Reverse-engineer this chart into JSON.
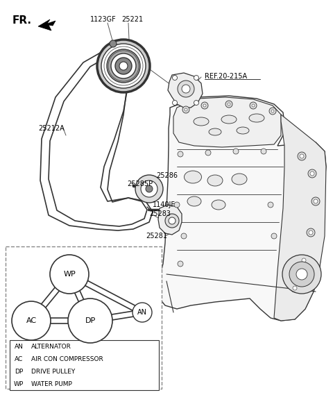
{
  "bg_color": "#ffffff",
  "line_color": "#333333",
  "legend_entries": [
    {
      "code": "AN",
      "desc": "ALTERNATOR"
    },
    {
      "code": "AC",
      "desc": "AIR CON COMPRESSOR"
    },
    {
      "code": "DP",
      "desc": "DRIVE PULLEY"
    },
    {
      "code": "WP",
      "desc": "WATER PUMP"
    }
  ]
}
